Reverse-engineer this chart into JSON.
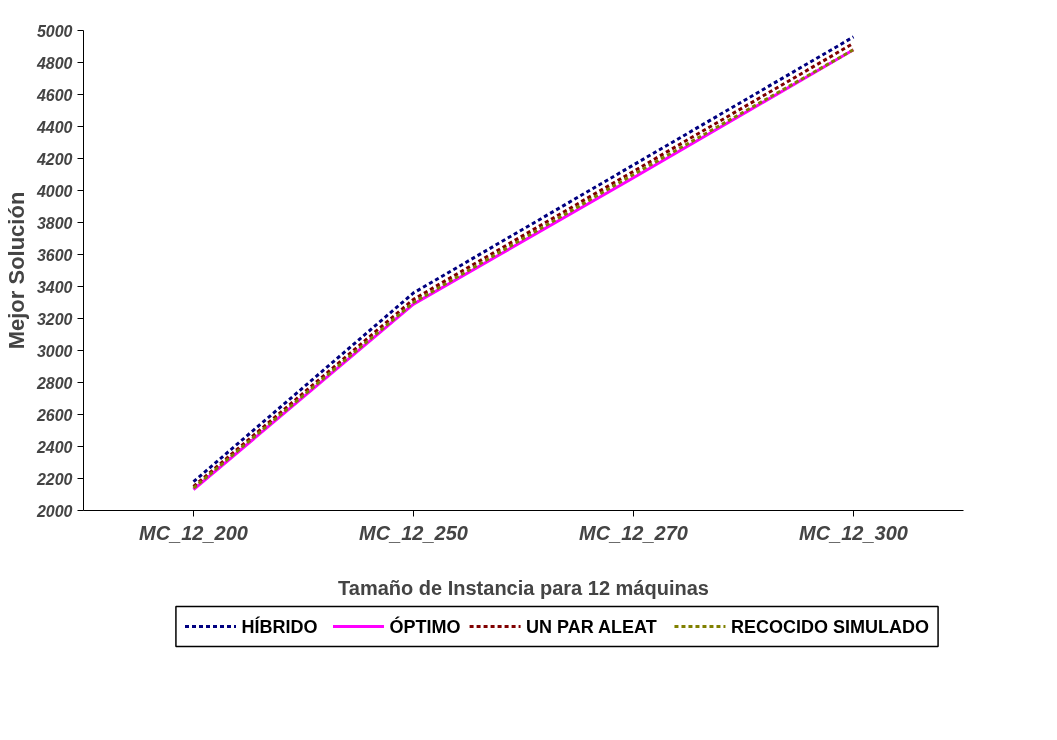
{
  "chart_data": {
    "type": "line",
    "xlabel": "Tamaño de Instancia para 12 máquinas",
    "ylabel": "Mejor Solución",
    "categories": [
      "MC_12_200",
      "MC_12_250",
      "MC_12_270",
      "MC_12_300"
    ],
    "series": [
      {
        "name": "HÍBRIDO",
        "color": "#000080",
        "line_style": "dashed",
        "values": [
          2180,
          3360,
          4160,
          4960
        ]
      },
      {
        "name": "ÓPTIMO",
        "color": "#ff00ff",
        "line_style": "solid",
        "values": [
          2130,
          3290,
          4080,
          4880
        ]
      },
      {
        "name": "UN PAR ALEAT",
        "color": "#800000",
        "line_style": "dashed",
        "values": [
          2150,
          3320,
          4120,
          4920
        ]
      },
      {
        "name": "RECOCIDO SIMULADO",
        "color": "#808000",
        "line_style": "dashed",
        "values": [
          2140,
          3300,
          4100,
          4880
        ]
      }
    ],
    "ylim": [
      2000,
      5000
    ],
    "yticks": [
      2000,
      2200,
      2400,
      2600,
      2800,
      3000,
      3200,
      3400,
      3600,
      3800,
      4000,
      4200,
      4400,
      4600,
      4800,
      5000
    ],
    "grid": false,
    "legend": "bottom"
  }
}
